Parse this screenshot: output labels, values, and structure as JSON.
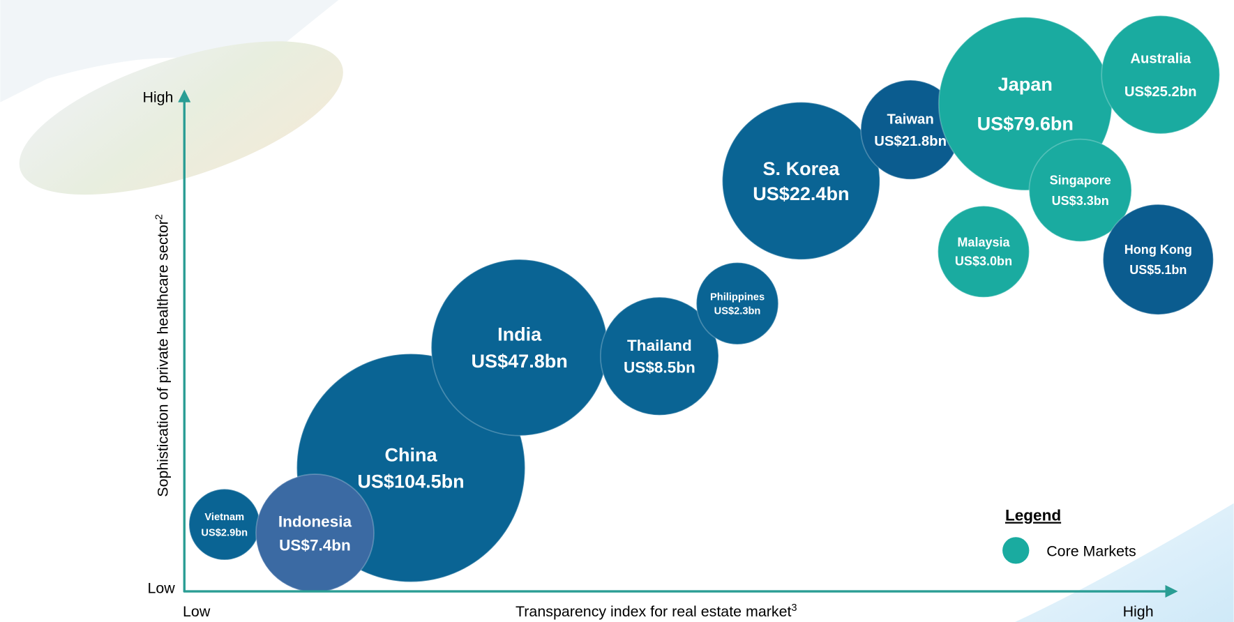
{
  "axes": {
    "y_high": "High",
    "y_low": "Low",
    "x_low": "Low",
    "x_high": "High",
    "x_title": "Transparency index for real estate market",
    "x_title_note": "3",
    "y_title": "Sophistication of private healthcare sector",
    "y_title_note": "2"
  },
  "bubbles": [
    {
      "name": "Vietnam",
      "label": "US$2.9bn",
      "core": false
    },
    {
      "name": "China",
      "label": "US$104.5bn",
      "core": false
    },
    {
      "name": "Indonesia",
      "label": "US$7.4bn",
      "core": false
    },
    {
      "name": "India",
      "label": "US$47.8bn",
      "core": false
    },
    {
      "name": "Thailand",
      "label": "US$8.5bn",
      "core": false
    },
    {
      "name": "Philippines",
      "label": "US$2.3bn",
      "core": false
    },
    {
      "name": "S. Korea",
      "label": "US$22.4bn",
      "core": false
    },
    {
      "name": "Taiwan",
      "label": "US$21.8bn",
      "core": false
    },
    {
      "name": "Japan",
      "label": "US$79.6bn",
      "core": true
    },
    {
      "name": "Australia",
      "label": "US$25.2bn",
      "core": true
    },
    {
      "name": "Singapore",
      "label": "US$3.3bn",
      "core": true
    },
    {
      "name": "Malaysia",
      "label": "US$3.0bn",
      "core": true
    },
    {
      "name": "Hong Kong",
      "label": "US$5.1bn",
      "core": false
    }
  ],
  "legend": {
    "title": "Legend",
    "label": "Core Markets"
  }
}
